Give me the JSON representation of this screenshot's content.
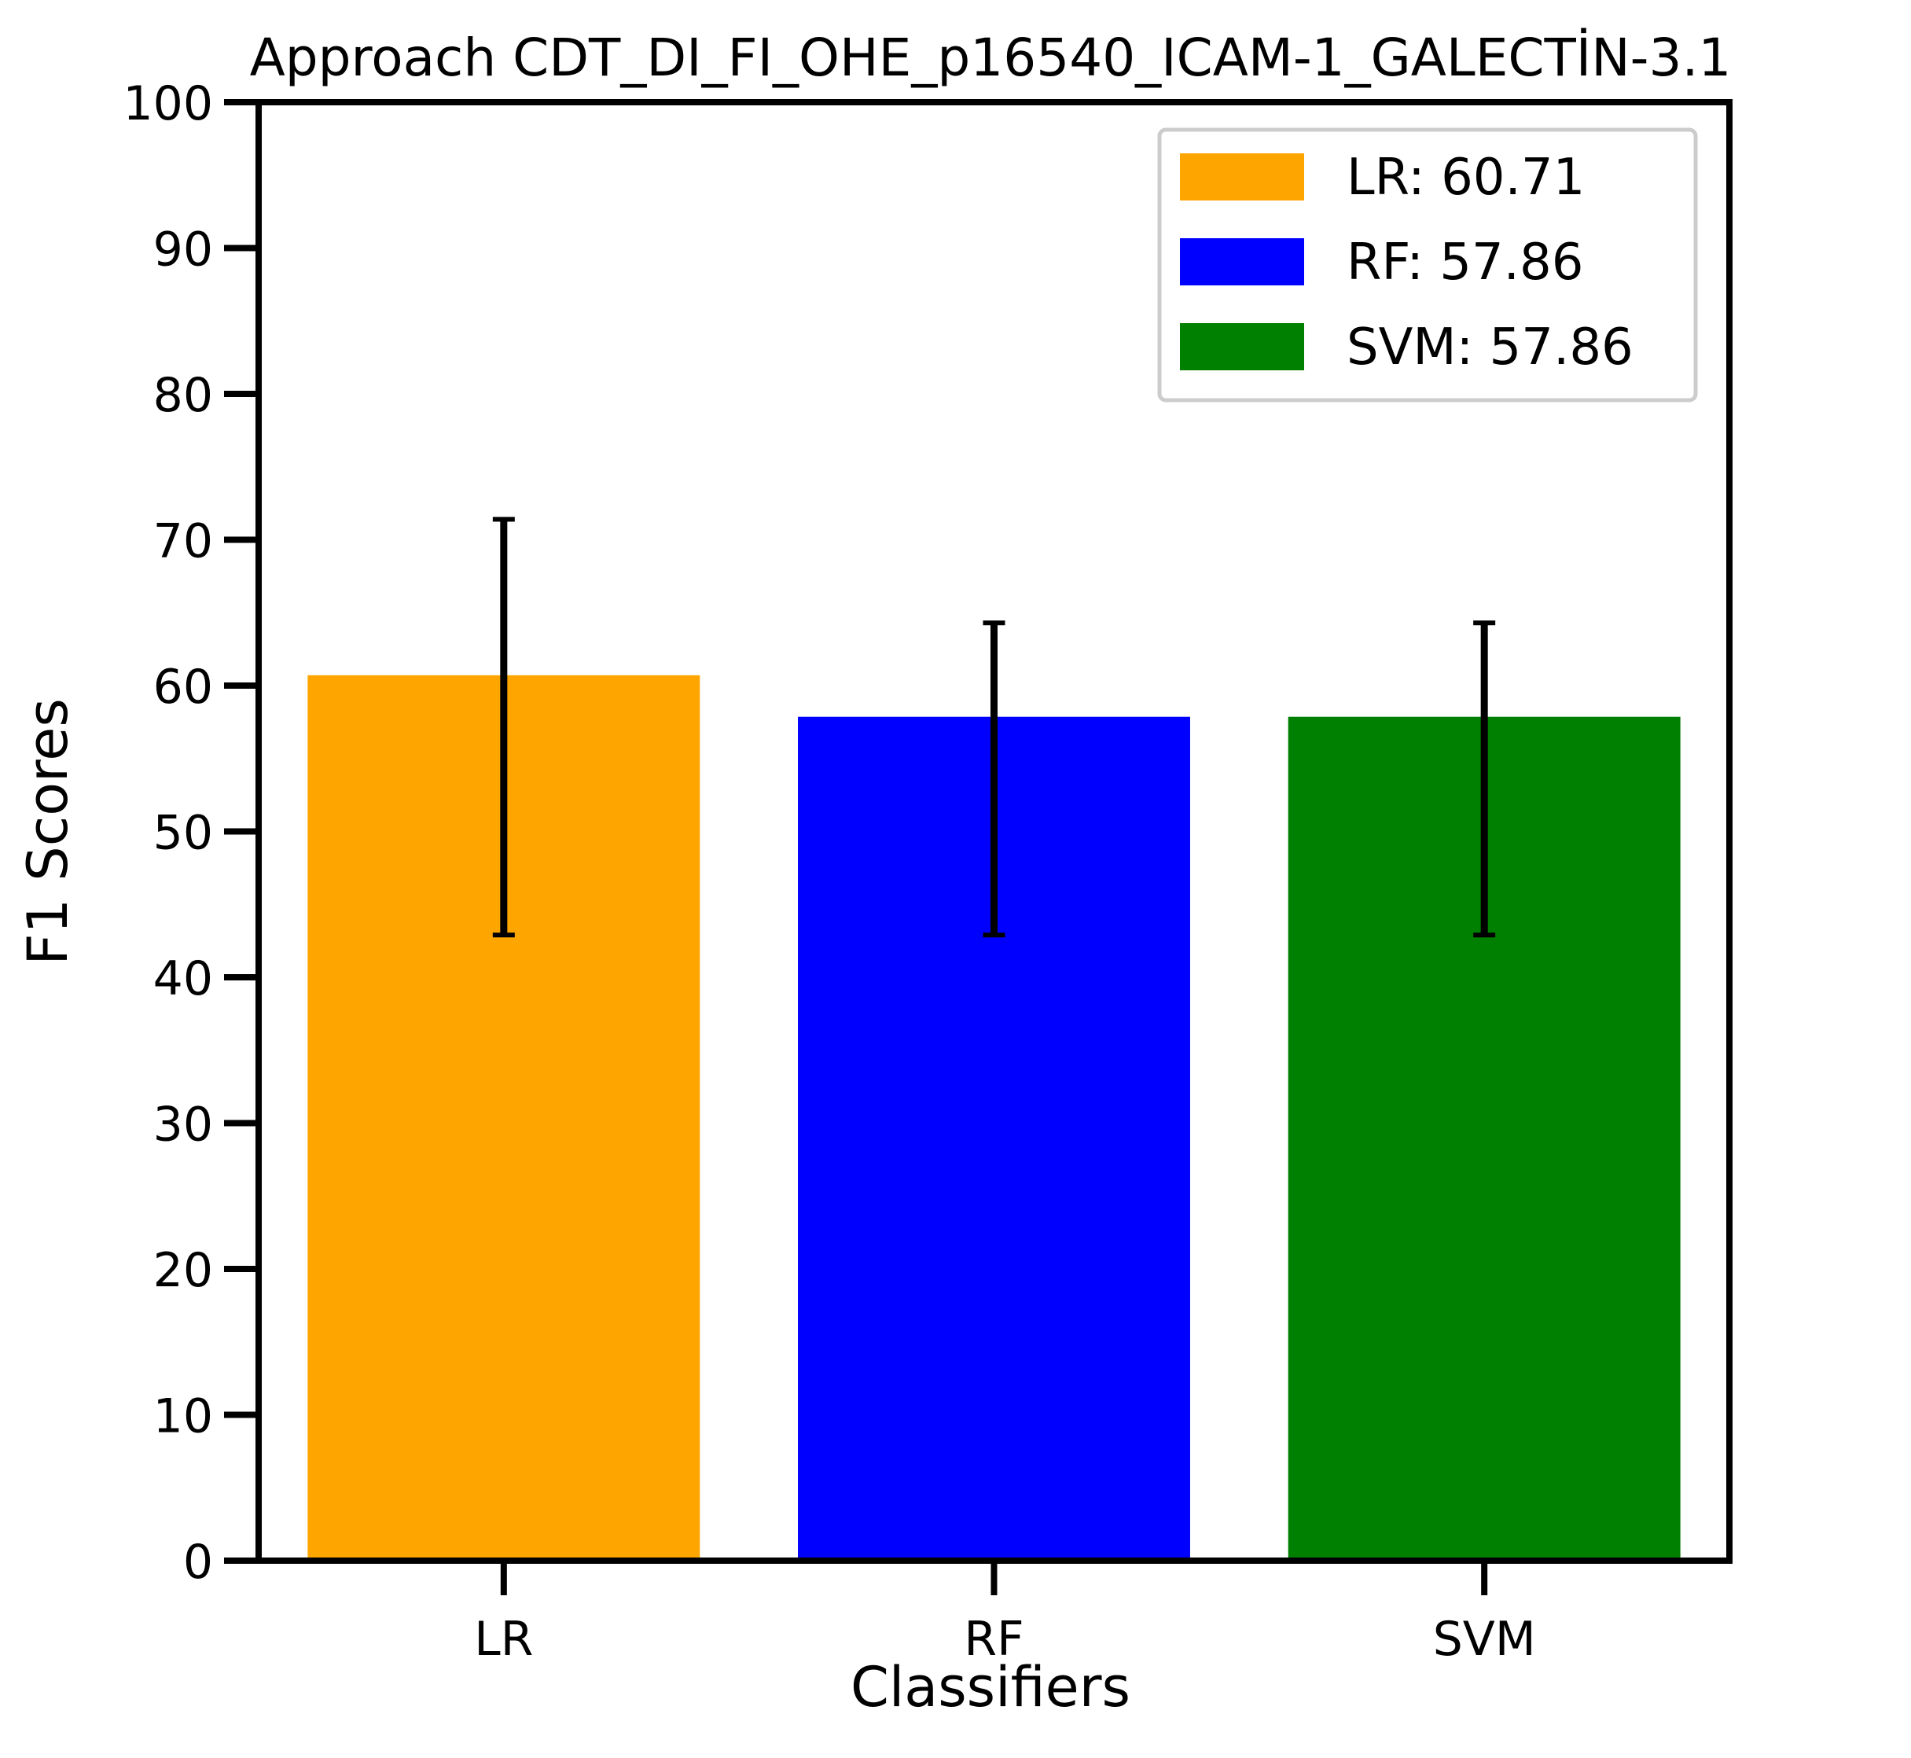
{
  "chart_data": {
    "type": "bar",
    "title": "Approach CDT_DI_FI_OHE_p16540_ICAM-1_GALECTİN-3.1",
    "xlabel": "Classifiers",
    "ylabel": "F1 Scores",
    "ylim": [
      0,
      100
    ],
    "yticks": [
      0,
      10,
      20,
      30,
      40,
      50,
      60,
      70,
      80,
      90,
      100
    ],
    "categories": [
      "LR",
      "RF",
      "SVM"
    ],
    "values": [
      60.71,
      57.86,
      57.86
    ],
    "error_low": [
      42.9,
      42.9,
      42.9
    ],
    "error_high": [
      71.4,
      64.3,
      64.3
    ],
    "colors": [
      "#ffa500",
      "#0000ff",
      "#008000"
    ],
    "error_color": "#000000",
    "grid": false,
    "legend": {
      "placement": "top-right",
      "entries": [
        "LR: 60.71",
        "RF: 57.86",
        "SVM: 57.86"
      ]
    }
  }
}
